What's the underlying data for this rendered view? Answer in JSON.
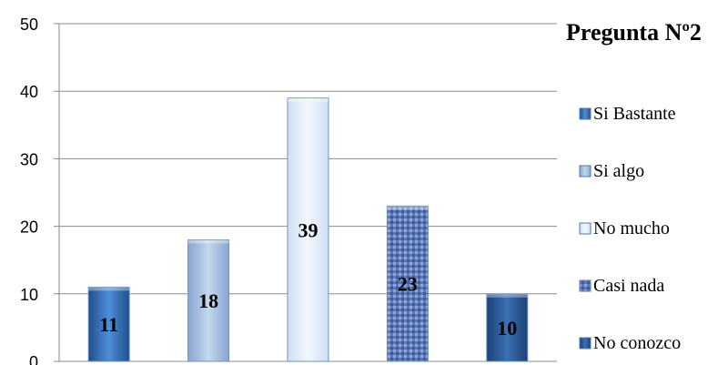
{
  "chart_data": {
    "type": "bar",
    "title": "Pregunta Nº2",
    "categories": [
      "Si Bastante",
      "Si algo",
      "No mucho",
      "Casi nada",
      "No conozco"
    ],
    "values": [
      11,
      18,
      39,
      23,
      10
    ],
    "ylim": [
      0,
      50
    ],
    "yticks": [
      0,
      10,
      20,
      30,
      40,
      50
    ],
    "grid": true,
    "legend_position": "right",
    "colors": [
      "#2e6bb5",
      "#a9c1e3",
      "#dce8f7",
      "#6d86c0",
      "#2a5594"
    ]
  }
}
